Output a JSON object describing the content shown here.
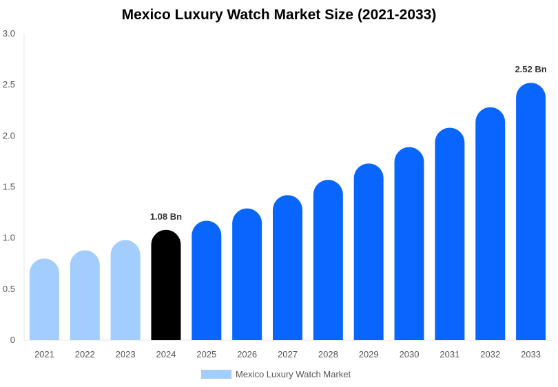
{
  "chart_data": {
    "type": "bar",
    "title": "Mexico Luxury Watch Market Size (2021-2033)",
    "categories": [
      "2021",
      "2022",
      "2023",
      "2024",
      "2025",
      "2026",
      "2027",
      "2028",
      "2029",
      "2030",
      "2031",
      "2032",
      "2033"
    ],
    "series": [
      {
        "name": "Mexico Luxury Watch Market",
        "values": [
          0.8,
          0.88,
          0.98,
          1.08,
          1.17,
          1.29,
          1.42,
          1.57,
          1.73,
          1.89,
          2.08,
          2.28,
          2.52
        ]
      }
    ],
    "ylim": [
      0,
      3.0
    ],
    "yticks": [
      "0",
      "0.5",
      "1.0",
      "1.5",
      "2.0",
      "2.5",
      "3.0"
    ],
    "data_labels": {
      "3": "1.08 Bn",
      "12": "2.52 Bn"
    },
    "colors": {
      "historical": "#a3cdfc",
      "base_year": "#000000",
      "forecast": "#0866ff",
      "legend": "#a3cdfc"
    },
    "grid": false,
    "legend_position": "bottom"
  }
}
